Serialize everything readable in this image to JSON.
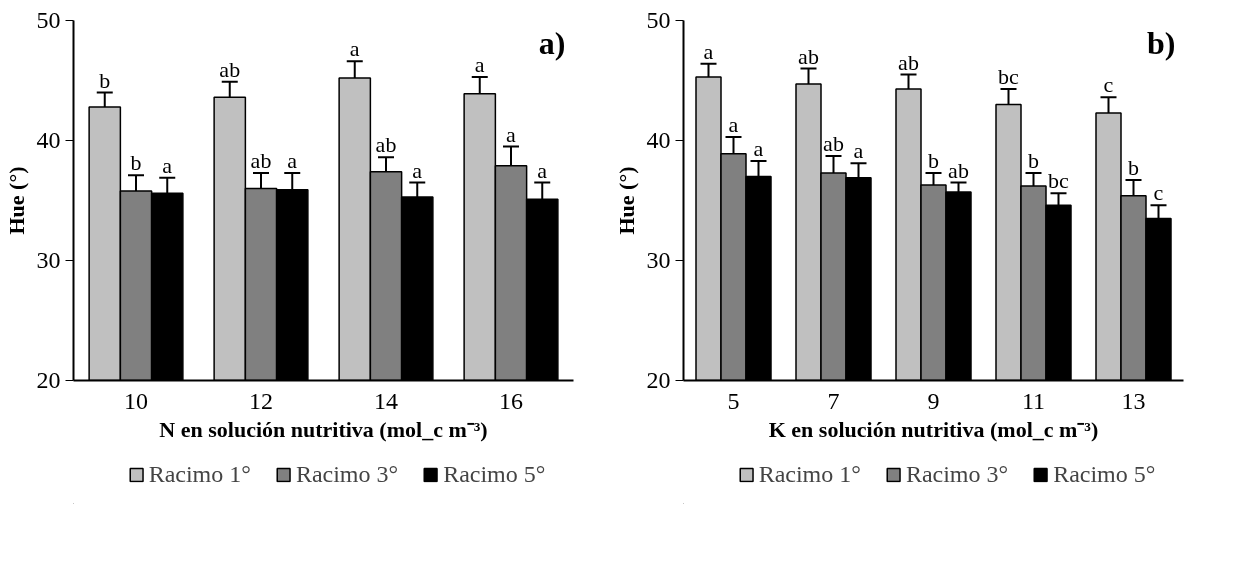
{
  "chart_data": [
    {
      "type": "bar",
      "annotations": [
        "a)"
      ],
      "xlabel": "N en solución nutritiva (mol_c m⁻³)",
      "ylabel": "Hue (°)",
      "categories": [
        "10",
        "12",
        "14",
        "16"
      ],
      "series": [
        {
          "name": "Racimo 1°",
          "color": "#c0c0c0",
          "values": [
            42.8,
            43.6,
            45.2,
            43.9
          ],
          "errors": [
            1.2,
            1.3,
            1.4,
            1.4
          ],
          "value_labels": [
            "b",
            "ab",
            "a",
            "a"
          ]
        },
        {
          "name": "Racimo 3°",
          "color": "#808080",
          "values": [
            35.8,
            36.0,
            37.4,
            37.9
          ],
          "errors": [
            1.3,
            1.3,
            1.2,
            1.6
          ],
          "value_labels": [
            "b",
            "ab",
            "ab",
            "a"
          ]
        },
        {
          "name": "Racimo 5°",
          "color": "#000000",
          "values": [
            35.6,
            35.9,
            35.3,
            35.1
          ],
          "errors": [
            1.3,
            1.4,
            1.2,
            1.4
          ],
          "value_labels": [
            "a",
            "a",
            "a",
            "a"
          ]
        }
      ],
      "ylim": [
        20,
        50
      ],
      "yticks": [
        20,
        30,
        40,
        50
      ],
      "legend": "bottom",
      "grid": false
    },
    {
      "type": "bar",
      "annotations": [
        "b)"
      ],
      "xlabel": "K en solución nutritiva (mol_c m⁻³)",
      "ylabel": "Hue (°)",
      "categories": [
        "5",
        "7",
        "9",
        "11",
        "13"
      ],
      "series": [
        {
          "name": "Racimo 1°",
          "color": "#c0c0c0",
          "values": [
            45.3,
            44.7,
            44.3,
            43.0,
            42.3
          ],
          "errors": [
            1.1,
            1.3,
            1.2,
            1.3,
            1.3
          ],
          "value_labels": [
            "a",
            "ab",
            "ab",
            "bc",
            "c"
          ]
        },
        {
          "name": "Racimo 3°",
          "color": "#808080",
          "values": [
            38.9,
            37.3,
            36.3,
            36.2,
            35.4
          ],
          "errors": [
            1.4,
            1.4,
            1.0,
            1.1,
            1.3
          ],
          "value_labels": [
            "a",
            "ab",
            "b",
            "b",
            "b"
          ]
        },
        {
          "name": "Racimo 5°",
          "color": "#000000",
          "values": [
            37.0,
            36.9,
            35.7,
            34.6,
            33.5
          ],
          "errors": [
            1.3,
            1.2,
            0.8,
            1.0,
            1.1
          ],
          "value_labels": [
            "a",
            "a",
            "ab",
            "bc",
            "c"
          ]
        }
      ],
      "ylim": [
        20,
        50
      ],
      "yticks": [
        20,
        30,
        40,
        50
      ],
      "legend": "bottom",
      "grid": false
    }
  ]
}
